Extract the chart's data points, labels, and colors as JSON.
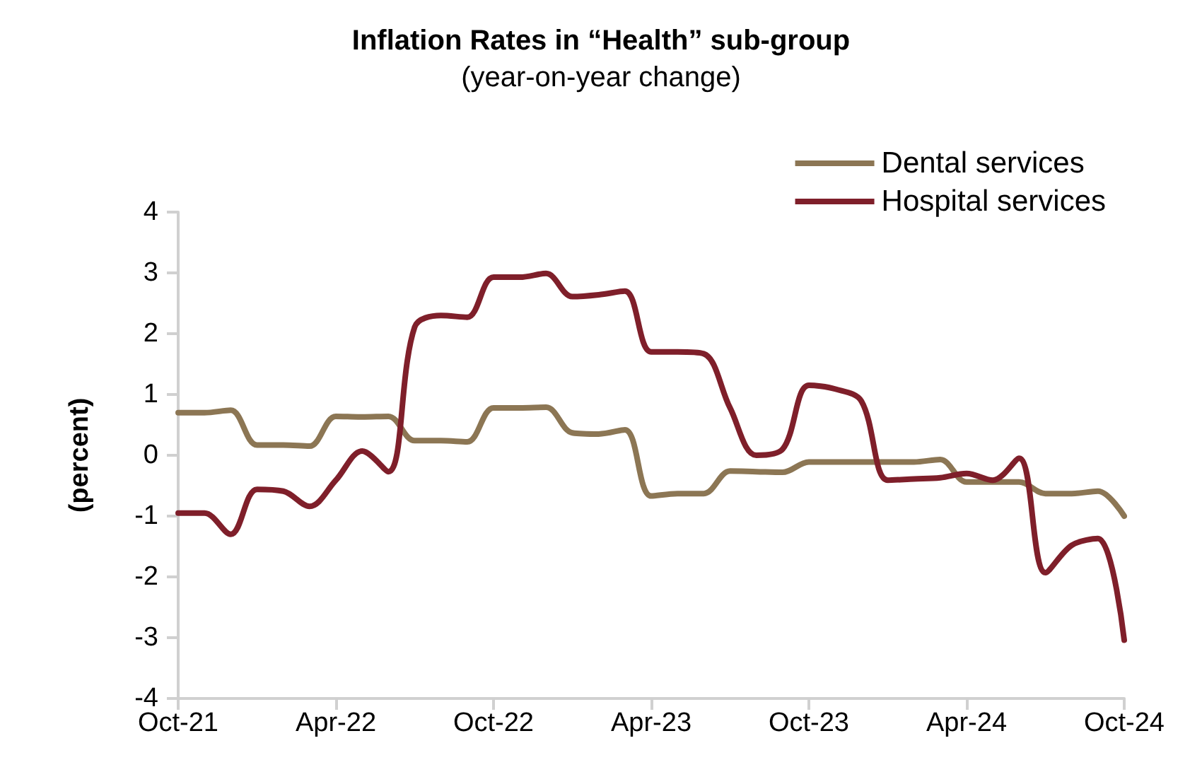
{
  "chart_data": {
    "type": "line",
    "title": "Inflation Rates in “Health” sub-group",
    "subtitle": "(year-on-year change)",
    "ylabel": "(percent)",
    "categories": [
      "Oct-21",
      null,
      null,
      null,
      null,
      null,
      "Apr-22",
      null,
      null,
      null,
      null,
      null,
      "Oct-22",
      null,
      null,
      null,
      null,
      null,
      "Apr-23",
      null,
      null,
      null,
      null,
      null,
      "Oct-23",
      null,
      null,
      null,
      null,
      null,
      "Apr-24",
      null,
      null,
      null,
      null,
      null,
      "Oct-24"
    ],
    "series": [
      {
        "name": "Dental services",
        "color": "#8c7654",
        "values": [
          0.7,
          0.7,
          0.74,
          0.17,
          0.17,
          0.15,
          0.64,
          0.63,
          0.64,
          0.24,
          0.24,
          0.22,
          0.78,
          0.78,
          0.79,
          0.37,
          0.35,
          0.42,
          -0.67,
          -0.63,
          -0.63,
          -0.26,
          -0.27,
          -0.28,
          -0.11,
          -0.11,
          -0.11,
          -0.11,
          -0.11,
          -0.07,
          -0.44,
          -0.44,
          -0.44,
          -0.63,
          -0.63,
          -0.59,
          -1.0
        ]
      },
      {
        "name": "Hospital services",
        "color": "#7f1f2a",
        "values": [
          -0.95,
          -0.95,
          -1.3,
          -0.56,
          -0.59,
          -0.84,
          -0.41,
          0.07,
          -0.27,
          2.11,
          2.3,
          2.27,
          2.93,
          2.93,
          2.99,
          2.61,
          2.64,
          2.7,
          1.7,
          1.7,
          1.67,
          0.78,
          0.0,
          0.1,
          1.15,
          1.09,
          0.89,
          -0.41,
          -0.39,
          -0.37,
          -0.3,
          -0.41,
          -0.05,
          -1.93,
          -1.48,
          -1.37,
          -3.04
        ]
      }
    ],
    "ylim": [
      -4,
      4
    ],
    "yticks": [
      -4,
      -3,
      -2,
      -1,
      0,
      1,
      2,
      3,
      4
    ],
    "grid": false,
    "legend": "top right",
    "marker": "none",
    "line_style": "solid"
  }
}
